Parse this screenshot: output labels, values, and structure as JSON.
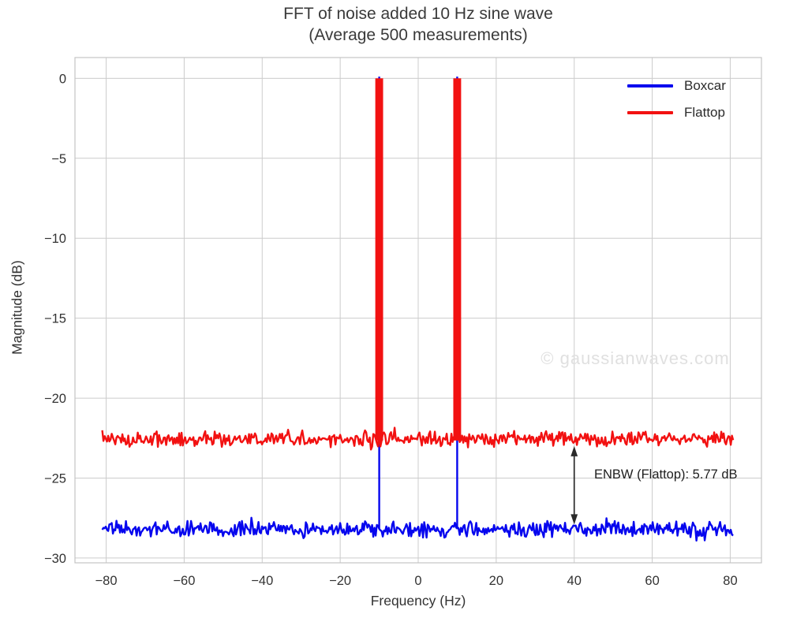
{
  "title": {
    "line1": "FFT of noise added 10 Hz sine wave",
    "line2": "(Average 500 measurements)"
  },
  "watermark": {
    "text": "© gaussianwaves.com",
    "color": "#e0e0e0"
  },
  "palette": {
    "boxcar_blue": "#0606ee",
    "flattop_red": "#f21111",
    "grid": "#cccccc",
    "spine": "#c4c4c4",
    "tick_text": "#333333",
    "arrow": "#2a2a2a"
  },
  "chart_data": {
    "type": "line",
    "title": "FFT of noise added 10 Hz sine wave\n(Average 500 measurements)",
    "xlabel": "Frequency (Hz)",
    "ylabel": "Magnitude (dB)",
    "xlim": [
      -88,
      88
    ],
    "ylim": [
      -30.3,
      1.3
    ],
    "x_ticks": [
      -80,
      -60,
      -40,
      -20,
      0,
      20,
      40,
      60,
      80
    ],
    "y_ticks": [
      0,
      -5,
      -10,
      -15,
      -20,
      -25,
      -30
    ],
    "grid": true,
    "legend_position": "upper right",
    "series": [
      {
        "name": "Boxcar",
        "color": "#0606ee",
        "kind": "noise-floor-with-peaks",
        "data_x_range_hz": [
          -81,
          81
        ],
        "noise_floor_db": -28.2,
        "noise_peak_to_peak_db": 0.8,
        "peaks": [
          {
            "x_hz": -10,
            "y_db": 0
          },
          {
            "x_hz": 10,
            "y_db": 0
          }
        ],
        "peak_width_hz": 0.4
      },
      {
        "name": "Flattop",
        "color": "#f21111",
        "kind": "noise-floor-with-peaks",
        "data_x_range_hz": [
          -81,
          81
        ],
        "noise_floor_db": -22.55,
        "noise_peak_to_peak_db": 0.8,
        "peaks": [
          {
            "x_hz": -10,
            "y_db": 0
          },
          {
            "x_hz": 10,
            "y_db": 0
          }
        ],
        "peak_width_hz": 1.7
      }
    ],
    "annotation": {
      "text": "ENBW (Flattop): 5.77 dB",
      "arrow_x_hz": 40,
      "arrow_from_db": -23.0,
      "arrow_to_db": -27.9
    }
  }
}
